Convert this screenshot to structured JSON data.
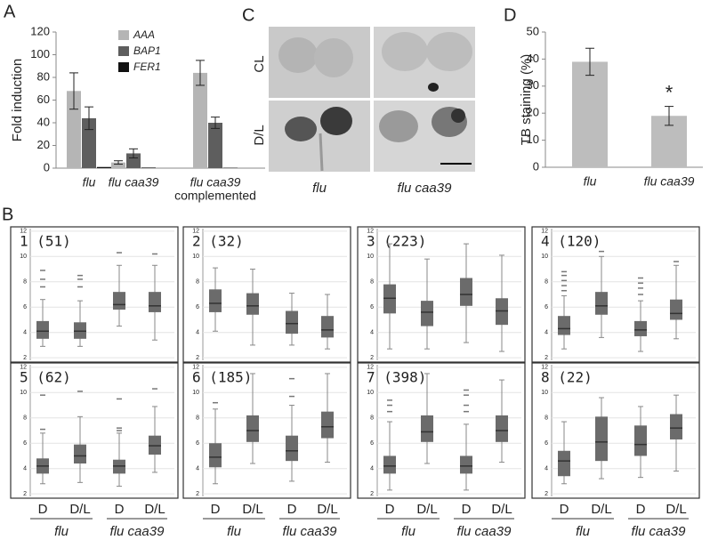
{
  "panel_labels": [
    "A",
    "B",
    "C",
    "D"
  ],
  "photo_panel": {
    "row_labels": [
      "CL",
      "D/L"
    ],
    "column_labels": [
      "flu",
      "flu caa39"
    ]
  },
  "chart_data": [
    {
      "type": "bar",
      "ylabel": "Fold induction",
      "categories": [
        [
          "flu"
        ],
        [
          "flu caa39"
        ],
        [
          "flu caa39",
          "complemented"
        ]
      ],
      "series": [
        {
          "name": "AAA",
          "color": "#b5b5b5",
          "values": [
            68,
            5,
            84
          ],
          "errors": [
            16,
            1.5,
            11
          ]
        },
        {
          "name": "BAP1",
          "color": "#5e5e5e",
          "values": [
            44,
            13,
            40
          ],
          "errors": [
            10,
            4,
            5
          ]
        },
        {
          "name": "FER1",
          "color": "#111111",
          "values": [
            1,
            0.5,
            0.3
          ],
          "errors": [
            0,
            0,
            0
          ]
        }
      ],
      "ylim": [
        0,
        120
      ],
      "yticks": [
        0,
        20,
        40,
        60,
        80,
        100,
        120
      ]
    },
    {
      "type": "bar",
      "ylabel": "TB staining (%)",
      "categories": [
        [
          "flu"
        ],
        [
          "flu caa39"
        ]
      ],
      "values": [
        39,
        19
      ],
      "errors": [
        5,
        3.5
      ],
      "color": "#bdbdbd",
      "annotation": "*",
      "ylim": [
        0,
        50
      ],
      "yticks": [
        0,
        10,
        20,
        30,
        40,
        50
      ]
    },
    {
      "type": "box",
      "title": "1 (51)",
      "color": "#6b6b6b",
      "grid": true,
      "ylim": [
        1.8,
        12.2
      ],
      "yticks": [
        2,
        4,
        6,
        8,
        10,
        12
      ],
      "boxes": [
        {
          "whislo": 2.9,
          "q1": 3.5,
          "med": 4.1,
          "q3": 4.9,
          "whishi": 6.6,
          "fliers": [
            7.6,
            8.2,
            8.9
          ]
        },
        {
          "whislo": 2.9,
          "q1": 3.5,
          "med": 4.1,
          "q3": 4.8,
          "whishi": 6.5,
          "fliers": [
            7.6,
            8.2,
            8.5
          ]
        },
        {
          "whislo": 4.5,
          "q1": 5.8,
          "med": 6.2,
          "q3": 7.2,
          "whishi": 9.3,
          "fliers": [
            10.3
          ]
        },
        {
          "whislo": 3.4,
          "q1": 5.6,
          "med": 6.1,
          "q3": 7.2,
          "whishi": 9.3,
          "fliers": [
            10.2
          ]
        }
      ]
    },
    {
      "type": "box",
      "title": "2 (32)",
      "color": "#6b6b6b",
      "grid": true,
      "ylim": [
        1.8,
        12.2
      ],
      "yticks": [
        2,
        4,
        6,
        8,
        10,
        12
      ],
      "boxes": [
        {
          "whislo": 4.1,
          "q1": 5.6,
          "med": 6.3,
          "q3": 7.4,
          "whishi": 9.1,
          "fliers": []
        },
        {
          "whislo": 3.0,
          "q1": 5.4,
          "med": 6.1,
          "q3": 7.1,
          "whishi": 9.0,
          "fliers": []
        },
        {
          "whislo": 3.0,
          "q1": 3.9,
          "med": 4.7,
          "q3": 5.7,
          "whishi": 7.1,
          "fliers": []
        },
        {
          "whislo": 2.7,
          "q1": 3.6,
          "med": 4.2,
          "q3": 5.3,
          "whishi": 7.0,
          "fliers": []
        }
      ]
    },
    {
      "type": "box",
      "title": "3 (223)",
      "color": "#6b6b6b",
      "grid": true,
      "ylim": [
        1.8,
        12.2
      ],
      "yticks": [
        2,
        4,
        6,
        8,
        10,
        12
      ],
      "boxes": [
        {
          "whislo": 2.7,
          "q1": 5.5,
          "med": 6.7,
          "q3": 7.8,
          "whishi": 11.0,
          "fliers": []
        },
        {
          "whislo": 2.7,
          "q1": 4.5,
          "med": 5.6,
          "q3": 6.5,
          "whishi": 9.8,
          "fliers": []
        },
        {
          "whislo": 3.2,
          "q1": 6.1,
          "med": 7.0,
          "q3": 8.3,
          "whishi": 11.0,
          "fliers": []
        },
        {
          "whislo": 2.5,
          "q1": 4.6,
          "med": 5.7,
          "q3": 6.7,
          "whishi": 10.1,
          "fliers": []
        }
      ]
    },
    {
      "type": "box",
      "title": "4 (120)",
      "color": "#6b6b6b",
      "grid": true,
      "ylim": [
        1.8,
        12.2
      ],
      "yticks": [
        2,
        4,
        6,
        8,
        10,
        12
      ],
      "boxes": [
        {
          "whislo": 2.7,
          "q1": 3.8,
          "med": 4.3,
          "q3": 5.3,
          "whishi": 6.9,
          "fliers": [
            7.3,
            7.7,
            8.1,
            8.5,
            8.8
          ]
        },
        {
          "whislo": 3.6,
          "q1": 5.4,
          "med": 6.1,
          "q3": 7.2,
          "whishi": 10.0,
          "fliers": [
            10.4
          ]
        },
        {
          "whislo": 2.5,
          "q1": 3.7,
          "med": 4.2,
          "q3": 4.9,
          "whishi": 6.5,
          "fliers": [
            7.0,
            7.5,
            7.9,
            8.3
          ]
        },
        {
          "whislo": 3.5,
          "q1": 5.0,
          "med": 5.5,
          "q3": 6.6,
          "whishi": 9.3,
          "fliers": [
            9.6
          ]
        }
      ]
    },
    {
      "type": "box",
      "title": "5 (62)",
      "color": "#6b6b6b",
      "grid": true,
      "ylim": [
        1.8,
        12.2
      ],
      "yticks": [
        2,
        4,
        6,
        8,
        10,
        12
      ],
      "categories": [
        "D",
        "D/L",
        "D",
        "D/L"
      ],
      "groups": [
        "flu",
        "flu caa39"
      ],
      "boxes": [
        {
          "whislo": 2.8,
          "q1": 3.6,
          "med": 4.2,
          "q3": 4.8,
          "whishi": 6.8,
          "fliers": [
            7.1,
            9.8
          ]
        },
        {
          "whislo": 2.9,
          "q1": 4.4,
          "med": 5.0,
          "q3": 5.9,
          "whishi": 8.1,
          "fliers": [
            10.1
          ]
        },
        {
          "whislo": 2.6,
          "q1": 3.6,
          "med": 4.2,
          "q3": 4.7,
          "whishi": 6.8,
          "fliers": [
            7.0,
            7.2,
            9.5
          ]
        },
        {
          "whislo": 3.7,
          "q1": 5.1,
          "med": 5.8,
          "q3": 6.6,
          "whishi": 8.9,
          "fliers": [
            10.3
          ]
        }
      ]
    },
    {
      "type": "box",
      "title": "6 (185)",
      "color": "#6b6b6b",
      "grid": true,
      "ylim": [
        1.8,
        12.2
      ],
      "yticks": [
        2,
        4,
        6,
        8,
        10,
        12
      ],
      "categories": [
        "D",
        "D/L",
        "D",
        "D/L"
      ],
      "groups": [
        "flu",
        "flu caa39"
      ],
      "boxes": [
        {
          "whislo": 2.8,
          "q1": 4.1,
          "med": 4.9,
          "q3": 6.0,
          "whishi": 8.7,
          "fliers": [
            9.2
          ]
        },
        {
          "whislo": 4.4,
          "q1": 6.1,
          "med": 7.0,
          "q3": 8.2,
          "whishi": 11.5,
          "fliers": []
        },
        {
          "whislo": 3.0,
          "q1": 4.6,
          "med": 5.4,
          "q3": 6.6,
          "whishi": 9.0,
          "fliers": [
            9.7,
            11.1
          ]
        },
        {
          "whislo": 4.5,
          "q1": 6.4,
          "med": 7.3,
          "q3": 8.5,
          "whishi": 11.5,
          "fliers": []
        }
      ]
    },
    {
      "type": "box",
      "title": "7 (398)",
      "color": "#6b6b6b",
      "grid": true,
      "ylim": [
        1.8,
        12.2
      ],
      "yticks": [
        2,
        4,
        6,
        8,
        10,
        12
      ],
      "categories": [
        "D",
        "D/L",
        "D",
        "D/L"
      ],
      "groups": [
        "flu",
        "flu caa39"
      ],
      "boxes": [
        {
          "whislo": 2.3,
          "q1": 3.6,
          "med": 4.2,
          "q3": 5.0,
          "whishi": 7.7,
          "fliers": [
            8.5,
            9.0,
            9.4
          ]
        },
        {
          "whislo": 4.4,
          "q1": 6.1,
          "med": 6.9,
          "q3": 8.2,
          "whishi": 11.5,
          "fliers": []
        },
        {
          "whislo": 2.3,
          "q1": 3.6,
          "med": 4.2,
          "q3": 5.0,
          "whishi": 7.5,
          "fliers": [
            8.5,
            9.0,
            9.8,
            10.2
          ]
        },
        {
          "whislo": 4.5,
          "q1": 6.1,
          "med": 7.0,
          "q3": 8.2,
          "whishi": 11.0,
          "fliers": []
        }
      ]
    },
    {
      "type": "box",
      "title": "8 (22)",
      "color": "#6b6b6b",
      "grid": true,
      "ylim": [
        1.8,
        12.2
      ],
      "yticks": [
        2,
        4,
        6,
        8,
        10,
        12
      ],
      "categories": [
        "D",
        "D/L",
        "D",
        "D/L"
      ],
      "groups": [
        "flu",
        "flu caa39"
      ],
      "boxes": [
        {
          "whislo": 2.8,
          "q1": 3.4,
          "med": 4.6,
          "q3": 5.4,
          "whishi": 7.7,
          "fliers": []
        },
        {
          "whislo": 3.2,
          "q1": 4.6,
          "med": 6.1,
          "q3": 8.1,
          "whishi": 9.6,
          "fliers": []
        },
        {
          "whislo": 3.3,
          "q1": 5.0,
          "med": 5.9,
          "q3": 7.4,
          "whishi": 8.9,
          "fliers": []
        },
        {
          "whislo": 3.8,
          "q1": 6.3,
          "med": 7.2,
          "q3": 8.3,
          "whishi": 9.8,
          "fliers": []
        }
      ]
    }
  ]
}
